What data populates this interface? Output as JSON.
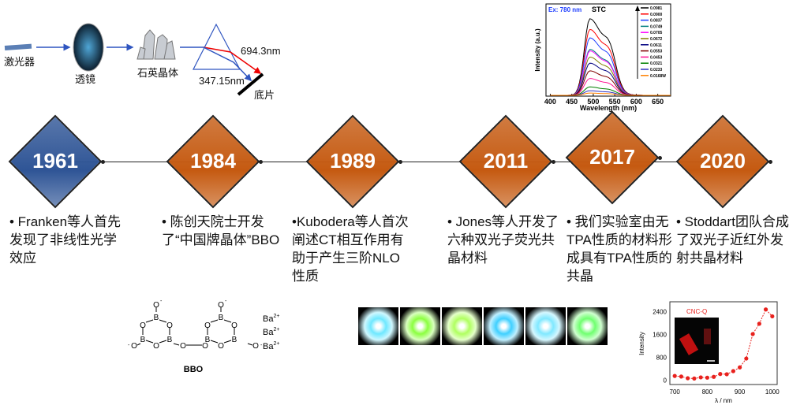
{
  "setup": {
    "laser": "激光器",
    "lens": "透镜",
    "crystal": "石英晶体",
    "red_wavelength": "694.3nm",
    "blue_wavelength": "347.15nm",
    "film": "底片"
  },
  "timeline": [
    {
      "year": "1961",
      "color": "#2f5596",
      "text": "• Franken等人首先发现了非线性光学效应"
    },
    {
      "year": "1984",
      "color": "#c55a11",
      "text": "• 陈创天院士开发了“中国牌晶体”BBO"
    },
    {
      "year": "1989",
      "color": "#c55a11",
      "text": "•Kubodera等人首次阐述CT相互作用有助于产生三阶NLO性质"
    },
    {
      "year": "2011",
      "color": "#c55a11",
      "text": "• Jones等人开发了六种双光子荧光共晶材料"
    },
    {
      "year": "2017",
      "color": "#c55a11",
      "text": "• 我们实验室由无TPA性质的材料形成具有TPA性质的共晶"
    },
    {
      "year": "2020",
      "color": "#c55a11",
      "text": "• Stoddart团队合成了双光子近红外发射共晶材料"
    }
  ],
  "bbo": {
    "name": "BBO",
    "ion": "Ba",
    "charge": "2+",
    "atoms": {
      "b": "B",
      "o": "O",
      "neg": "-"
    }
  },
  "chart_data": [
    {
      "type": "line",
      "title": "STC",
      "annotation": "Ex: 780 nm",
      "xlabel": "Wavelength (nm)",
      "ylabel": "Intensity (a.u.)",
      "xlim": [
        390,
        680
      ],
      "xticks": [
        400,
        450,
        500,
        550,
        600,
        650
      ],
      "series": [
        {
          "name": "0.0981",
          "color": "#000000",
          "peak": 1.0
        },
        {
          "name": "0.0900",
          "color": "#ff0000",
          "peak": 0.86
        },
        {
          "name": "0.0837",
          "color": "#1f3fff",
          "peak": 0.75
        },
        {
          "name": "0.0749",
          "color": "#008080",
          "peak": 0.6
        },
        {
          "name": "0.0705",
          "color": "#ff00ff",
          "peak": 0.58
        },
        {
          "name": "0.0672",
          "color": "#808000",
          "peak": 0.5
        },
        {
          "name": "0.0611",
          "color": "#000080",
          "peak": 0.42
        },
        {
          "name": "0.0553",
          "color": "#800000",
          "peak": 0.32
        },
        {
          "name": "0.0453",
          "color": "#ff1493",
          "peak": 0.22
        },
        {
          "name": "0.0321",
          "color": "#008000",
          "peak": 0.11
        },
        {
          "name": "0.0233",
          "color": "#3030c0",
          "peak": 0.06
        },
        {
          "name": "0.0168W",
          "color": "#ff8000",
          "peak": 0.03
        }
      ]
    },
    {
      "type": "scatter",
      "title": "CNC-Q",
      "xlabel": "λ / nm",
      "ylabel": "Intensity",
      "xlim": [
        685,
        1015
      ],
      "ylim": [
        -150,
        2750
      ],
      "xticks": [
        700,
        800,
        900,
        1000
      ],
      "yticks": [
        0,
        800,
        1600,
        2400
      ],
      "x": [
        700,
        720,
        740,
        760,
        780,
        800,
        820,
        840,
        860,
        880,
        900,
        920,
        940,
        960,
        980,
        1000
      ],
      "y": [
        150,
        130,
        70,
        60,
        100,
        90,
        120,
        220,
        210,
        320,
        450,
        760,
        1620,
        1980,
        2480,
        2240
      ],
      "color": "#e8211d"
    }
  ]
}
